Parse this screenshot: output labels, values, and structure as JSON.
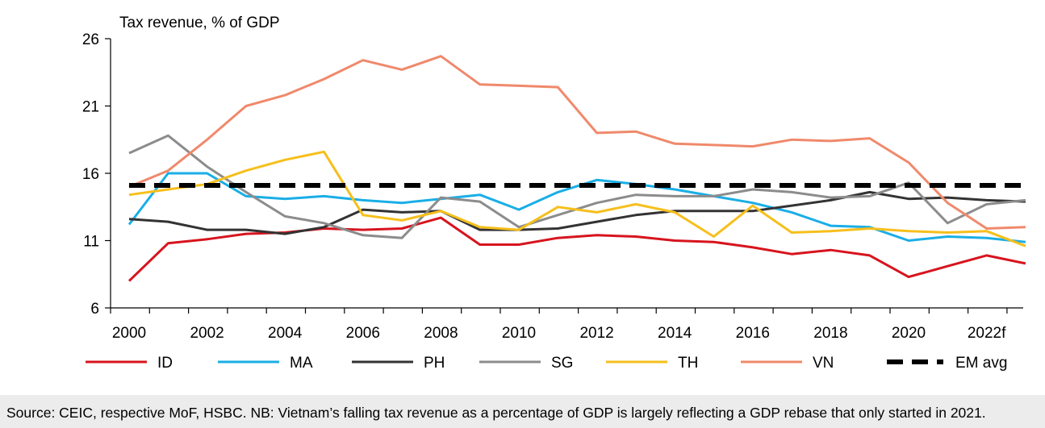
{
  "chart_data": {
    "type": "line",
    "title": "Tax revenue, % of GDP",
    "xlabel": "",
    "ylabel": "Tax revenue, % of GDP",
    "ylim": [
      6,
      26
    ],
    "yticks": [
      "6",
      "11",
      "16",
      "21",
      "26"
    ],
    "x": [
      2000,
      2001,
      2002,
      2003,
      2004,
      2005,
      2006,
      2007,
      2008,
      2009,
      2010,
      2011,
      2012,
      2013,
      2014,
      2015,
      2016,
      2017,
      2018,
      2019,
      2020,
      2021,
      2022,
      2023
    ],
    "xtick_labels": [
      "2000",
      "2002",
      "2004",
      "2006",
      "2008",
      "2010",
      "2012",
      "2014",
      "2016",
      "2018",
      "2020",
      "2022f"
    ],
    "legend_position": "bottom",
    "series": [
      {
        "name": "ID",
        "color": "#d7141e",
        "style": "solid",
        "values": [
          8.0,
          10.8,
          11.1,
          11.5,
          11.6,
          11.9,
          11.8,
          11.9,
          12.7,
          10.7,
          10.7,
          11.2,
          11.4,
          11.3,
          11.0,
          10.9,
          10.5,
          10.0,
          10.3,
          9.9,
          8.3,
          9.1,
          9.9,
          9.3
        ]
      },
      {
        "name": "MA",
        "color": "#1aaee6",
        "style": "solid",
        "values": [
          12.2,
          16.0,
          16.0,
          14.3,
          14.1,
          14.3,
          14.0,
          13.8,
          14.1,
          14.4,
          13.3,
          14.6,
          15.5,
          15.2,
          14.8,
          14.3,
          13.8,
          13.1,
          12.1,
          12.0,
          11.0,
          11.3,
          11.2,
          10.9
        ]
      },
      {
        "name": "PH",
        "color": "#333333",
        "style": "solid",
        "values": [
          12.6,
          12.4,
          11.8,
          11.8,
          11.5,
          12.0,
          13.3,
          13.1,
          13.2,
          11.8,
          11.8,
          11.9,
          12.4,
          12.9,
          13.2,
          13.2,
          13.2,
          13.6,
          14.0,
          14.6,
          14.1,
          14.2,
          14.0,
          13.9
        ]
      },
      {
        "name": "SG",
        "color": "#8c8c8c",
        "style": "solid",
        "values": [
          17.5,
          18.8,
          16.5,
          14.6,
          12.8,
          12.3,
          11.4,
          11.2,
          14.2,
          13.9,
          12.0,
          12.9,
          13.8,
          14.4,
          14.3,
          14.3,
          14.8,
          14.6,
          14.2,
          14.3,
          15.3,
          12.3,
          13.7,
          14.0
        ]
      },
      {
        "name": "TH",
        "color": "#f6bf1c",
        "style": "solid",
        "values": [
          14.4,
          14.8,
          15.2,
          16.2,
          17.0,
          17.6,
          12.9,
          12.5,
          13.2,
          12.0,
          11.8,
          13.5,
          13.1,
          13.7,
          13.1,
          11.3,
          13.6,
          11.6,
          11.7,
          11.9,
          11.7,
          11.6,
          11.7,
          10.6
        ]
      },
      {
        "name": "VN",
        "color": "#f0896b",
        "style": "solid",
        "values": [
          15.0,
          16.2,
          18.5,
          21.0,
          21.8,
          23.0,
          24.4,
          23.7,
          24.7,
          22.6,
          22.5,
          22.4,
          19.0,
          19.1,
          18.2,
          18.1,
          18.0,
          18.5,
          18.4,
          18.6,
          16.8,
          13.8,
          11.9,
          12.0
        ]
      },
      {
        "name": "EM avg",
        "color": "#000000",
        "style": "dashed",
        "values": [
          15.1,
          15.1,
          15.1,
          15.1,
          15.1,
          15.1,
          15.1,
          15.1,
          15.1,
          15.1,
          15.1,
          15.1,
          15.1,
          15.1,
          15.1,
          15.1,
          15.1,
          15.1,
          15.1,
          15.1,
          15.1,
          15.1,
          15.1,
          15.1
        ]
      }
    ]
  },
  "footer": {
    "source": "Source: CEIC, respective MoF, HSBC. NB: Vietnam’s falling tax revenue as a percentage of GDP is largely reflecting a GDP rebase that only started in 2021."
  }
}
